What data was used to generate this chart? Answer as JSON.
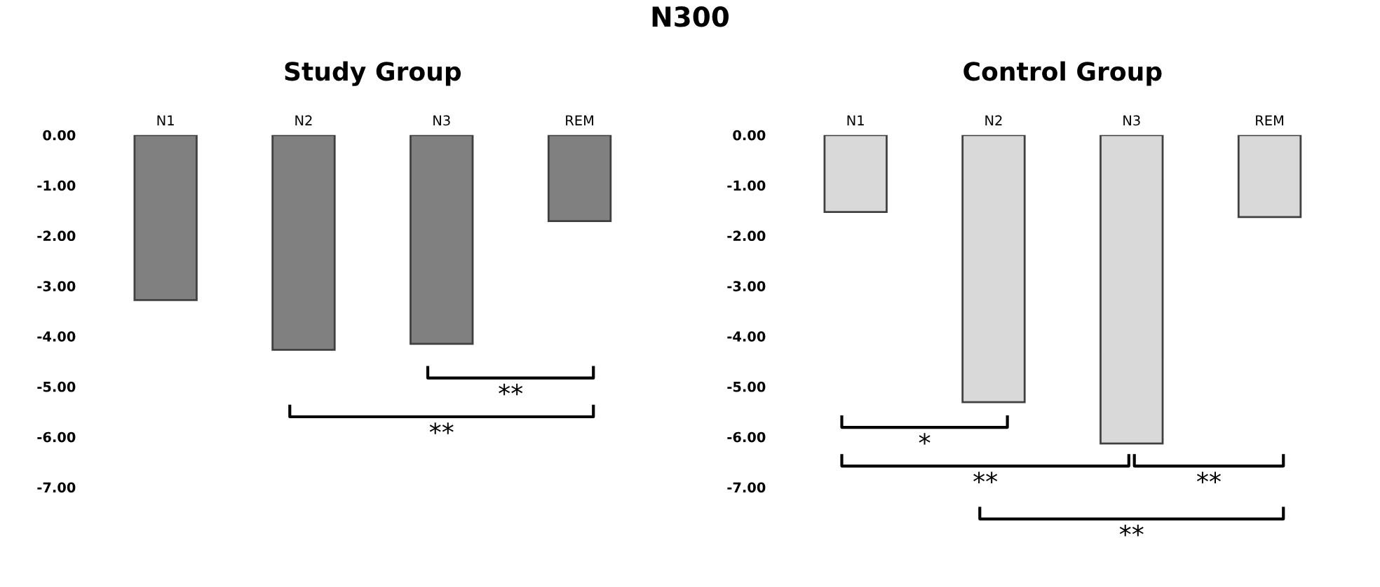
{
  "chart_data": [
    {
      "type": "bar",
      "title": "N300",
      "subtitle": "Study Group",
      "categories": [
        "N1",
        "N2",
        "N3",
        "REM"
      ],
      "values": [
        -3.28,
        -4.27,
        -4.15,
        -1.71
      ],
      "color": "#808080",
      "ylim": [
        -7,
        0
      ],
      "yticks": [
        {
          "value": 0,
          "label": "0.00"
        },
        {
          "value": -1,
          "label": "-1.00"
        },
        {
          "value": -2,
          "label": "-2.00"
        },
        {
          "value": -3,
          "label": "-3.00"
        },
        {
          "value": -4,
          "label": "-4.00"
        },
        {
          "value": -5,
          "label": "-5.00"
        },
        {
          "value": -6,
          "label": "-6.00"
        },
        {
          "value": -7,
          "label": "-7.00"
        }
      ],
      "grid": false,
      "legend": false,
      "annotations": [
        "**",
        "**"
      ]
    },
    {
      "type": "bar",
      "subtitle": "Control Group",
      "categories": [
        "N1",
        "N2",
        "N3",
        "REM"
      ],
      "values": [
        -1.53,
        -5.31,
        -6.13,
        -1.63
      ],
      "color": "#d9d9d9",
      "ylim": [
        -7,
        0
      ],
      "yticks": [
        {
          "value": 0,
          "label": "0.00"
        },
        {
          "value": -1,
          "label": "-1.00"
        },
        {
          "value": -2,
          "label": "-2.00"
        },
        {
          "value": -3,
          "label": "-3.00"
        },
        {
          "value": -4,
          "label": "-4.00"
        },
        {
          "value": -5,
          "label": "-5.00"
        },
        {
          "value": -6,
          "label": "-6.00"
        },
        {
          "value": -7,
          "label": "-7.00"
        }
      ],
      "grid": false,
      "legend": false,
      "annotations": [
        "*",
        "**",
        "**",
        "**"
      ]
    }
  ]
}
